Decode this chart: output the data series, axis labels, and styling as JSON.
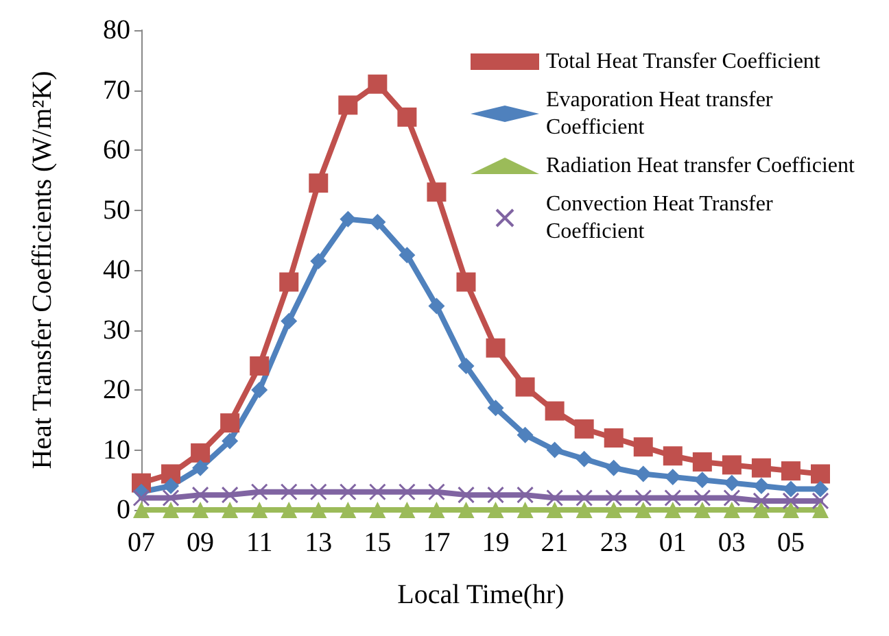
{
  "chart_data": {
    "type": "line",
    "xlabel": "Local Time(hr)",
    "ylabel": "Heat Transfer Coefficients (W/m²K)",
    "categories": [
      "07",
      null,
      "09",
      null,
      "11",
      null,
      "13",
      null,
      "15",
      null,
      "17",
      null,
      "19",
      null,
      "21",
      null,
      "23",
      null,
      "01",
      null,
      "03",
      null,
      "05",
      null
    ],
    "ylim": [
      0,
      80
    ],
    "yticks": [
      0,
      10,
      20,
      30,
      40,
      50,
      60,
      70,
      80
    ],
    "grid": false,
    "legend": "top right",
    "series": [
      {
        "name": "Total Heat Transfer Coefficient",
        "color": "#c0504d",
        "marker": "square",
        "values": [
          4.5,
          6,
          9.5,
          14.5,
          24,
          38,
          54.5,
          67.5,
          71,
          65.5,
          53,
          38,
          27,
          20.5,
          16.5,
          13.5,
          12,
          10.5,
          9,
          8,
          7.5,
          7,
          6.5,
          6
        ]
      },
      {
        "name": "Evaporation Heat transfer Coefficient",
        "color": "#4f81bd",
        "marker": "diamond",
        "values": [
          3,
          4,
          7,
          11.5,
          20,
          31.5,
          41.5,
          48.5,
          48,
          42.5,
          34,
          24,
          17,
          12.5,
          10,
          8.5,
          7,
          6,
          5.5,
          5,
          4.5,
          4,
          3.5,
          3.5
        ]
      },
      {
        "name": "Radiation Heat transfer Coefficient",
        "color": "#9bbb59",
        "marker": "triangle",
        "values": [
          0,
          0,
          0,
          0,
          0,
          0,
          0,
          0,
          0,
          0,
          0,
          0,
          0,
          0,
          0,
          0,
          0,
          0,
          0,
          0,
          0,
          0,
          0,
          0
        ]
      },
      {
        "name": "Convection Heat Transfer Coefficient",
        "color": "#8064a2",
        "marker": "cross",
        "values": [
          2,
          2,
          2.5,
          2.5,
          3,
          3,
          3,
          3,
          3,
          3,
          3,
          2.5,
          2.5,
          2.5,
          2,
          2,
          2,
          2,
          2,
          2,
          2,
          1.5,
          1.5,
          1.5
        ]
      }
    ]
  }
}
